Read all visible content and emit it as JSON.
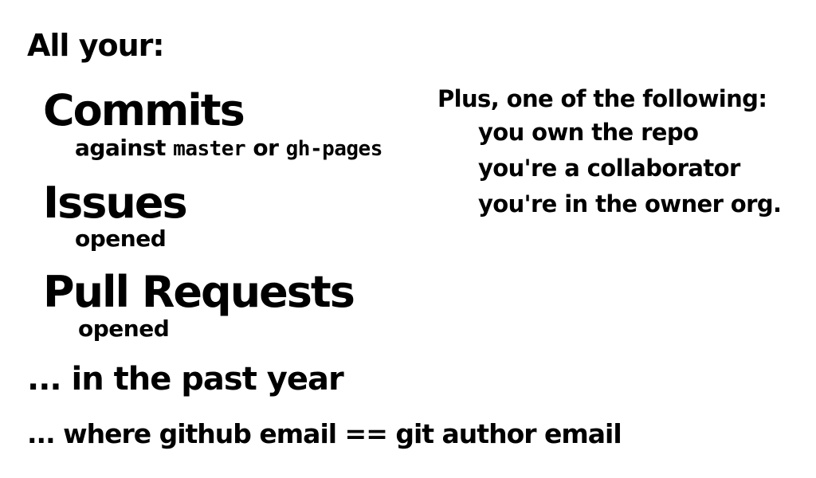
{
  "heading": "All your:",
  "items": [
    {
      "title": "Commits",
      "sub_parts": [
        "against ",
        "master",
        " or ",
        "gh-pages"
      ]
    },
    {
      "title": "Issues",
      "sub": "opened"
    },
    {
      "title": "Pull Requests",
      "sub": "opened"
    }
  ],
  "past_year": "... in the past year",
  "email_note": "... where github email == git author email",
  "plus": {
    "heading": "Plus, one of the following:",
    "options": [
      "you own the repo",
      "you're a collaborator",
      "you're in the owner org."
    ]
  }
}
